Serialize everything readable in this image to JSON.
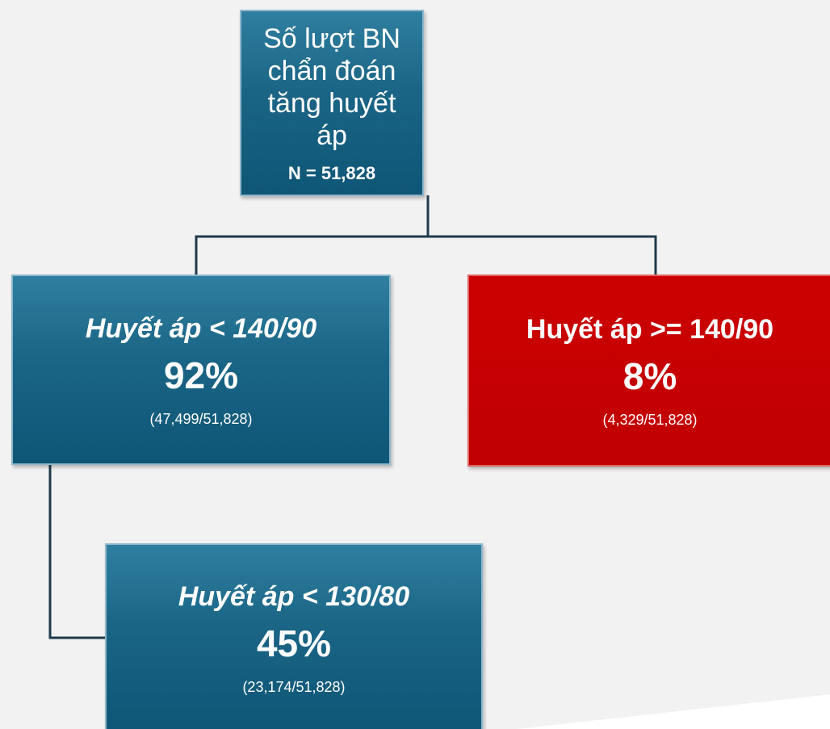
{
  "nodes": [
    {
      "title": "Số lượt BN chẩn đoán tăng huyết áp",
      "value": "N = 51,828"
    },
    {
      "title": "Huyết áp < 140/90",
      "value": "92%",
      "detail": "(47,499/51,828)"
    },
    {
      "title": "Huyết áp >= 140/90",
      "value": "8%",
      "detail": "(4,329/51,828)"
    },
    {
      "title": "Huyết áp < 130/80",
      "value": "45%",
      "detail": "(23,174/51,828)"
    }
  ]
}
